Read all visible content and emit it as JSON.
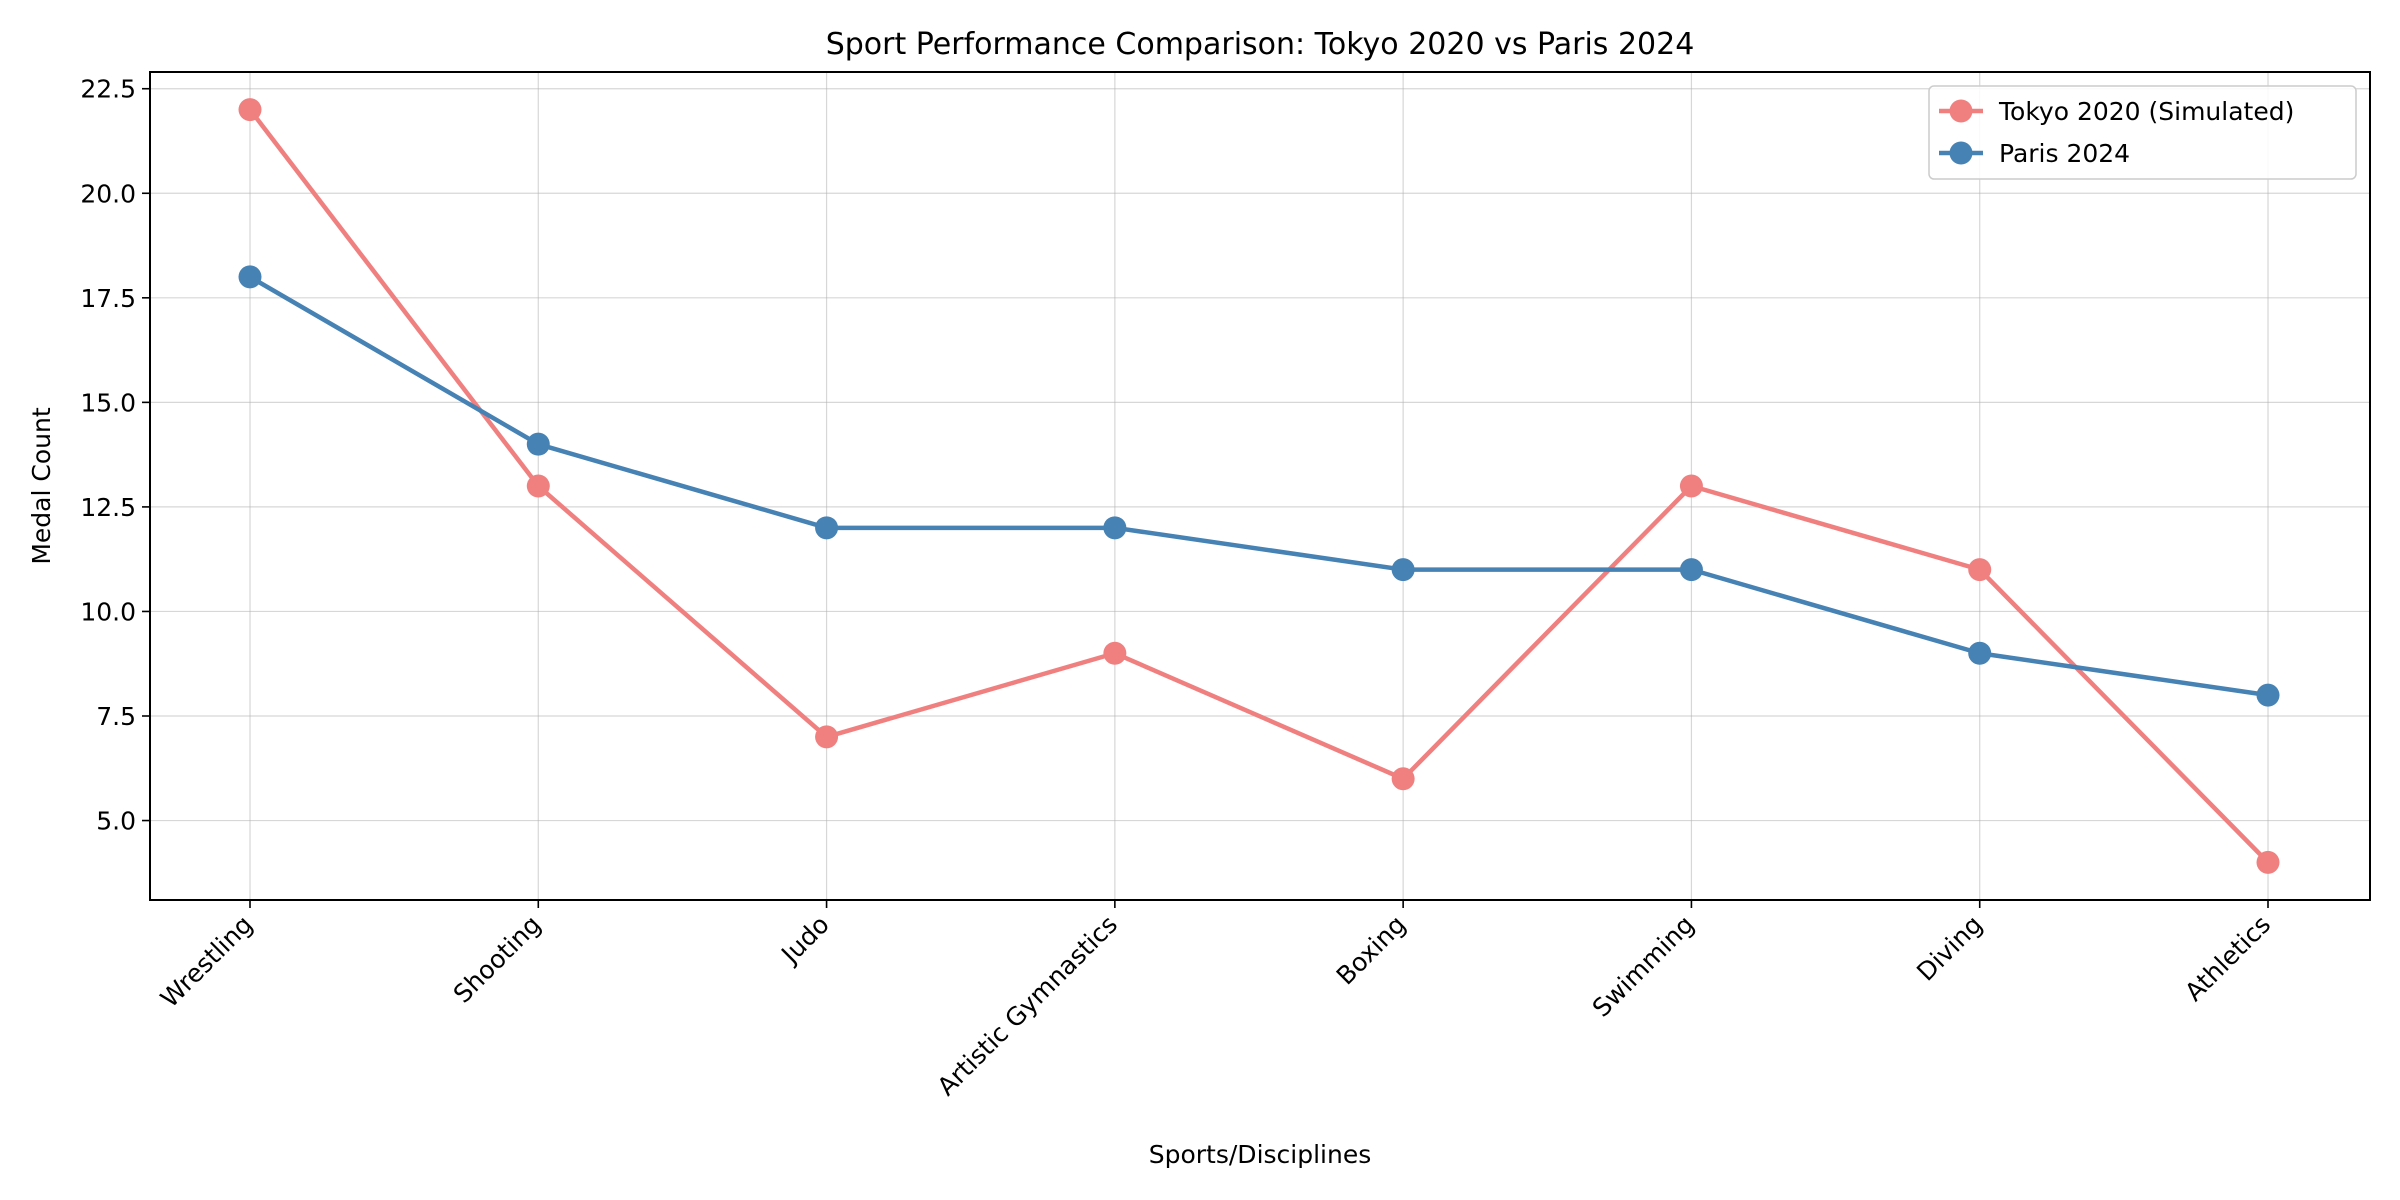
{
  "chart_data": {
    "type": "line",
    "title": "Sport Performance Comparison: Tokyo 2020 vs Paris 2024",
    "xlabel": "Sports/Disciplines",
    "ylabel": "Medal Count",
    "categories": [
      "Wrestling",
      "Shooting",
      "Judo",
      "Artistic Gymnastics",
      "Boxing",
      "Swimming",
      "Diving",
      "Athletics"
    ],
    "series": [
      {
        "name": "Tokyo 2020 (Simulated)",
        "color": "#F08080",
        "marker": "circle",
        "values": [
          22,
          13,
          7,
          9,
          6,
          13,
          11,
          4
        ]
      },
      {
        "name": "Paris 2024",
        "color": "#4682B4",
        "marker": "circle",
        "values": [
          18,
          14,
          12,
          12,
          11,
          11,
          9,
          8
        ]
      }
    ],
    "ylim": [
      3.1,
      22.9
    ],
    "yticks": [
      5.0,
      7.5,
      10.0,
      12.5,
      15.0,
      17.5,
      20.0,
      22.5
    ],
    "ytick_labels": [
      "5.0",
      "7.5",
      "10.0",
      "12.5",
      "15.0",
      "17.5",
      "20.0",
      "22.5"
    ],
    "grid": true,
    "legend_position": "top-right",
    "xtick_rotation": "45 degrees"
  }
}
